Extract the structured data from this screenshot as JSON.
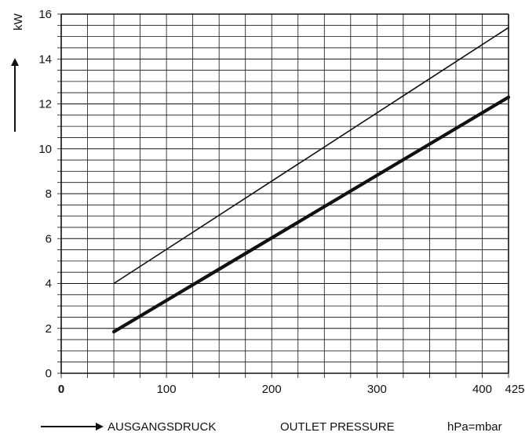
{
  "chart_data": {
    "type": "line",
    "x_axis": {
      "range": [
        0,
        425
      ],
      "major_ticks": [
        0,
        100,
        200,
        300,
        400,
        425
      ],
      "minor_step": 25,
      "label_parts": [
        "AUSGANGSDRUCK",
        "OUTLET PRESSURE",
        "hPa=mbar"
      ]
    },
    "y_axis": {
      "range": [
        0,
        16
      ],
      "major_ticks": [
        0,
        2,
        4,
        6,
        8,
        10,
        12,
        14,
        16
      ],
      "minor_step": 0.5,
      "label": "kW"
    },
    "series": [
      {
        "style": "thin",
        "points": [
          [
            50,
            4.0
          ],
          [
            425,
            15.4
          ]
        ]
      },
      {
        "style": "thick",
        "points": [
          [
            50,
            1.85
          ],
          [
            425,
            12.3
          ]
        ]
      }
    ],
    "grid": true
  }
}
